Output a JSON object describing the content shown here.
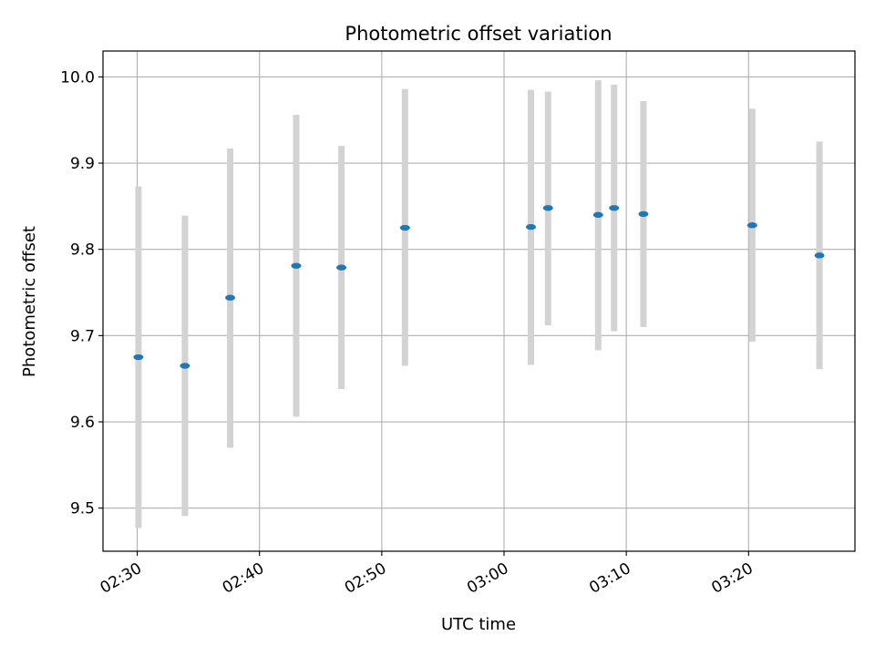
{
  "chart_data": {
    "type": "scatter",
    "title": "Photometric offset variation",
    "xlabel": "UTC time",
    "ylabel": "Photometric offset",
    "x_tick_labels": [
      "02:30",
      "02:40",
      "02:50",
      "03:00",
      "03:10",
      "03:20"
    ],
    "x_tick_minutes": [
      150,
      160,
      170,
      180,
      190,
      200
    ],
    "y_ticks": [
      9.5,
      9.6,
      9.7,
      9.8,
      9.9,
      10.0
    ],
    "y_tick_labels": [
      "9.5",
      "9.6",
      "9.7",
      "9.8",
      "9.9",
      "10.0"
    ],
    "xlim_minutes": [
      147.2,
      208.7
    ],
    "ylim": [
      9.45,
      10.03
    ],
    "grid": true,
    "colors": {
      "marker": "#1f77b4",
      "errorbar": "#d3d3d3",
      "grid": "#b0b0b0"
    },
    "series": [
      {
        "points": [
          {
            "time": "02:30",
            "minute": 150.1,
            "y": 9.675,
            "ylow": 9.477,
            "yhigh": 9.873
          },
          {
            "time": "02:33",
            "minute": 153.9,
            "y": 9.665,
            "ylow": 9.491,
            "yhigh": 9.839
          },
          {
            "time": "02:37",
            "minute": 157.6,
            "y": 9.744,
            "ylow": 9.57,
            "yhigh": 9.917
          },
          {
            "time": "02:43",
            "minute": 163.0,
            "y": 9.781,
            "ylow": 9.606,
            "yhigh": 9.956
          },
          {
            "time": "02:46",
            "minute": 166.7,
            "y": 9.779,
            "ylow": 9.638,
            "yhigh": 9.92
          },
          {
            "time": "02:51",
            "minute": 171.9,
            "y": 9.825,
            "ylow": 9.665,
            "yhigh": 9.986
          },
          {
            "time": "03:02",
            "minute": 182.2,
            "y": 9.826,
            "ylow": 9.666,
            "yhigh": 9.985
          },
          {
            "time": "03:03",
            "minute": 183.6,
            "y": 9.848,
            "ylow": 9.712,
            "yhigh": 9.983
          },
          {
            "time": "03:07",
            "minute": 187.7,
            "y": 9.84,
            "ylow": 9.683,
            "yhigh": 9.996
          },
          {
            "time": "03:09",
            "minute": 189.0,
            "y": 9.848,
            "ylow": 9.705,
            "yhigh": 9.991
          },
          {
            "time": "03:11",
            "minute": 191.4,
            "y": 9.841,
            "ylow": 9.71,
            "yhigh": 9.972
          },
          {
            "time": "03:20",
            "minute": 200.3,
            "y": 9.828,
            "ylow": 9.693,
            "yhigh": 9.963
          },
          {
            "time": "03:25",
            "minute": 205.8,
            "y": 9.793,
            "ylow": 9.661,
            "yhigh": 9.925
          }
        ]
      }
    ]
  }
}
